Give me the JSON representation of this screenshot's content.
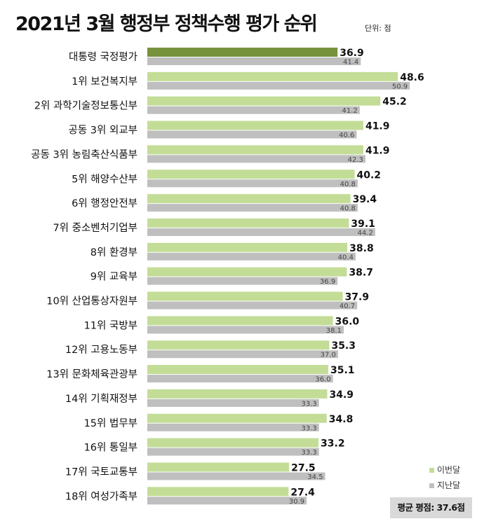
{
  "chart_data": {
    "type": "bar",
    "orientation": "horizontal",
    "title": "2021년 3월 행정부 정책수행 평가 순위",
    "unit_label": "단위: 점",
    "categories": [
      "대통령 국정평가",
      "1위 보건복지부",
      "2위 과학기술정보통신부",
      "공동 3위 외교부",
      "공동 3위 농림축산식품부",
      "5위 해양수산부",
      "6위 행정안전부",
      "7위 중소벤처기업부",
      "8위 환경부",
      "9위 교육부",
      "10위 산업통상자원부",
      "11위 국방부",
      "12위 고용노동부",
      "13위 문화체육관광부",
      "14위 기획재정부",
      "15위 법무부",
      "16위 통일부",
      "17위 국토교통부",
      "18위 여성가족부"
    ],
    "series": [
      {
        "name": "이번달",
        "values": [
          36.9,
          48.6,
          45.2,
          41.9,
          41.9,
          40.2,
          39.4,
          39.1,
          38.8,
          38.7,
          37.9,
          36.0,
          35.3,
          35.1,
          34.9,
          34.8,
          33.2,
          27.5,
          27.4
        ],
        "labels": [
          "36.9",
          "48.6",
          "45.2",
          "41.9",
          "41.9",
          "40.2",
          "39.4",
          "39.1",
          "38.8",
          "38.7",
          "37.9",
          "36.0",
          "35.3",
          "35.1",
          "34.9",
          "34.8",
          "33.2",
          "27.5",
          "27.4"
        ]
      },
      {
        "name": "지난달",
        "values": [
          41.4,
          50.9,
          41.2,
          40.6,
          42.3,
          40.8,
          40.8,
          44.2,
          40.4,
          36.9,
          40.7,
          38.1,
          37.0,
          36.0,
          33.3,
          33.3,
          33.3,
          34.5,
          30.9
        ],
        "labels": [
          "41.4",
          "50.9",
          "41.2",
          "40.6",
          "42.3",
          "40.8",
          "40.8",
          "44.2",
          "40.4",
          "36.9",
          "40.7",
          "38.1",
          "37.0",
          "36.0",
          "33.3",
          "33.3",
          "33.3",
          "34.5",
          "30.9"
        ]
      }
    ],
    "highlight_index": 0,
    "colors": {
      "current": "#c3dd97",
      "current_highlight": "#76923c",
      "previous": "#bfbfbf"
    },
    "legend": {
      "position": "bottom-right",
      "items": [
        {
          "label": "이번달",
          "color": "#c3dd97"
        },
        {
          "label": "지난달",
          "color": "#bfbfbf"
        }
      ]
    },
    "average_label": "평균 평점: 37.6점",
    "xlim": [
      0,
      52
    ],
    "grid": false
  }
}
